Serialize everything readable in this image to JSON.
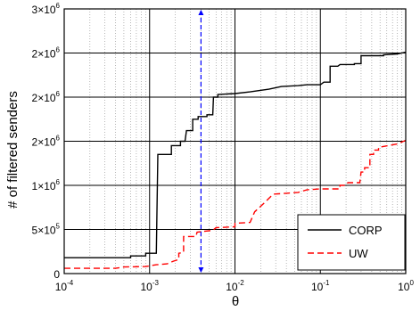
{
  "chart_data": {
    "type": "line",
    "title": "",
    "xlabel": "θ",
    "ylabel": "# of filtered senders",
    "x_scale": "log",
    "xlim": [
      0.0001,
      1
    ],
    "ylim": [
      0,
      3000000
    ],
    "grid": true,
    "legend_position": "bottom-right",
    "x_ticks": [
      {
        "base": "10",
        "exp": "-4"
      },
      {
        "base": "10",
        "exp": "-3"
      },
      {
        "base": "10",
        "exp": "-2"
      },
      {
        "base": "10",
        "exp": "-1"
      },
      {
        "base": "10",
        "exp": "0"
      }
    ],
    "y_ticks": [
      {
        "value": 0,
        "label": "0",
        "base": "",
        "exp": ""
      },
      {
        "value": 500000,
        "label": "",
        "base": "5×10",
        "exp": "5"
      },
      {
        "value": 1000000,
        "label": "",
        "base": "1×10",
        "exp": "6"
      },
      {
        "value": 1500000,
        "label": "",
        "base": "2×10",
        "exp": "6"
      },
      {
        "value": 2000000,
        "label": "",
        "base": "2×10",
        "exp": "6"
      },
      {
        "value": 2500000,
        "label": "",
        "base": "2×10",
        "exp": "6"
      },
      {
        "value": 3000000,
        "label": "",
        "base": "3×10",
        "exp": "6"
      }
    ],
    "marker_line": {
      "x": 0.004,
      "color": "#0000ff"
    },
    "series": [
      {
        "name": "CORP",
        "color": "#000000",
        "dash": "",
        "points": [
          [
            0.0001,
            180000
          ],
          [
            0.0006,
            180000
          ],
          [
            0.0006,
            200000
          ],
          [
            0.0009,
            200000
          ],
          [
            0.0009,
            230000
          ],
          [
            0.0012,
            230000
          ],
          [
            0.00125,
            1350000
          ],
          [
            0.0018,
            1350000
          ],
          [
            0.0018,
            1450000
          ],
          [
            0.0023,
            1450000
          ],
          [
            0.0023,
            1500000
          ],
          [
            0.0026,
            1500000
          ],
          [
            0.0027,
            1620000
          ],
          [
            0.0032,
            1620000
          ],
          [
            0.0032,
            1750000
          ],
          [
            0.0037,
            1750000
          ],
          [
            0.0037,
            1780000
          ],
          [
            0.0047,
            1780000
          ],
          [
            0.0047,
            1800000
          ],
          [
            0.0055,
            1800000
          ],
          [
            0.0056,
            2000000
          ],
          [
            0.0063,
            2000000
          ],
          [
            0.0063,
            2030000
          ],
          [
            0.01,
            2040000
          ],
          [
            0.015,
            2060000
          ],
          [
            0.025,
            2090000
          ],
          [
            0.035,
            2120000
          ],
          [
            0.055,
            2130000
          ],
          [
            0.07,
            2140000
          ],
          [
            0.1,
            2140000
          ],
          [
            0.11,
            2170000
          ],
          [
            0.13,
            2170000
          ],
          [
            0.13,
            2350000
          ],
          [
            0.16,
            2350000
          ],
          [
            0.17,
            2370000
          ],
          [
            0.25,
            2370000
          ],
          [
            0.25,
            2380000
          ],
          [
            0.3,
            2380000
          ],
          [
            0.3,
            2470000
          ],
          [
            0.55,
            2470000
          ],
          [
            0.55,
            2480000
          ],
          [
            0.8,
            2490000
          ],
          [
            1.0,
            2510000
          ]
        ]
      },
      {
        "name": "UW",
        "color": "#ff0000",
        "dash": "7,4",
        "points": [
          [
            0.0001,
            60000
          ],
          [
            0.0004,
            60000
          ],
          [
            0.0005,
            75000
          ],
          [
            0.0009,
            80000
          ],
          [
            0.0012,
            100000
          ],
          [
            0.0016,
            110000
          ],
          [
            0.0019,
            140000
          ],
          [
            0.0022,
            160000
          ],
          [
            0.0022,
            230000
          ],
          [
            0.0025,
            240000
          ],
          [
            0.0025,
            420000
          ],
          [
            0.0035,
            420000
          ],
          [
            0.0036,
            470000
          ],
          [
            0.0055,
            490000
          ],
          [
            0.006,
            520000
          ],
          [
            0.01,
            530000
          ],
          [
            0.01,
            570000
          ],
          [
            0.015,
            580000
          ],
          [
            0.017,
            700000
          ],
          [
            0.022,
            800000
          ],
          [
            0.028,
            900000
          ],
          [
            0.04,
            910000
          ],
          [
            0.055,
            920000
          ],
          [
            0.07,
            950000
          ],
          [
            0.1,
            960000
          ],
          [
            0.17,
            960000
          ],
          [
            0.17,
            1000000
          ],
          [
            0.2,
            1000000
          ],
          [
            0.21,
            1030000
          ],
          [
            0.29,
            1030000
          ],
          [
            0.3,
            1150000
          ],
          [
            0.33,
            1150000
          ],
          [
            0.33,
            1200000
          ],
          [
            0.38,
            1200000
          ],
          [
            0.38,
            1350000
          ],
          [
            0.42,
            1350000
          ],
          [
            0.42,
            1400000
          ],
          [
            0.48,
            1400000
          ],
          [
            0.48,
            1430000
          ],
          [
            0.8,
            1470000
          ],
          [
            1.0,
            1510000
          ]
        ]
      }
    ]
  }
}
